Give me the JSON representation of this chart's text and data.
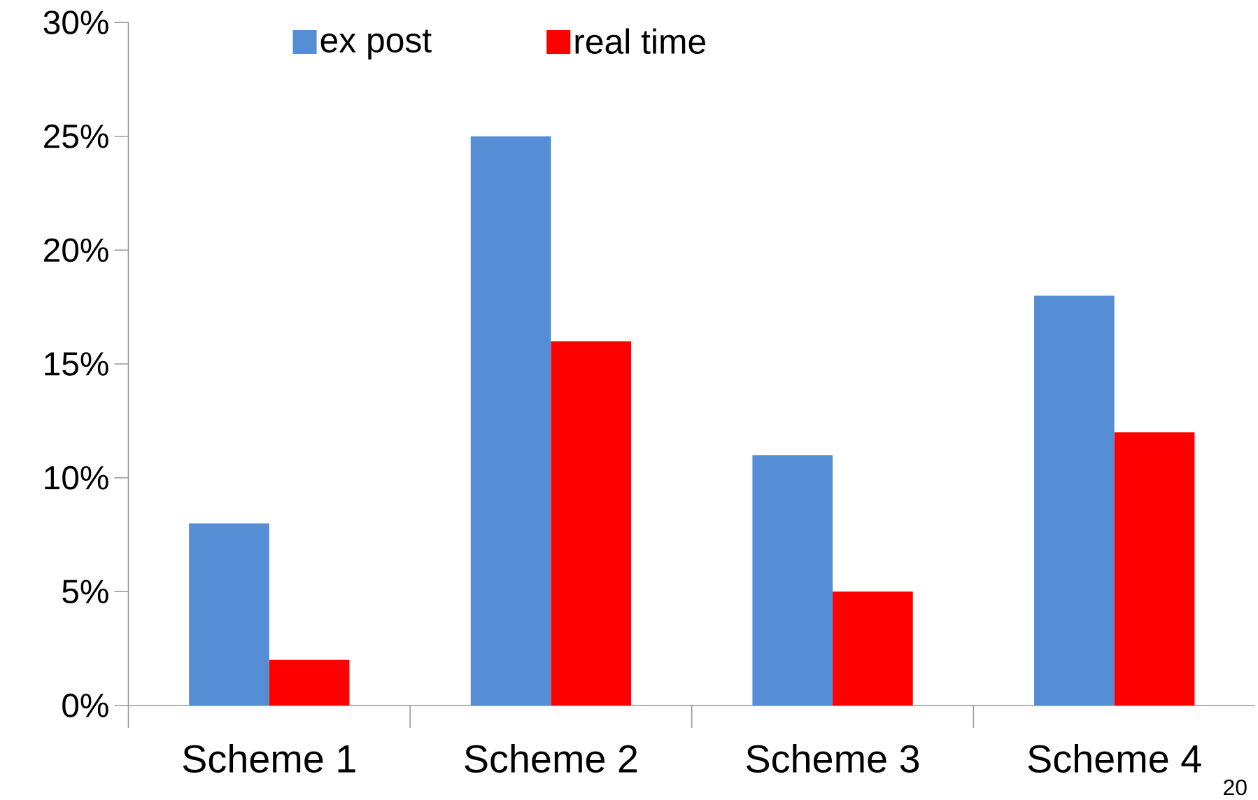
{
  "chart_data": {
    "type": "bar",
    "categories": [
      "Scheme 1",
      "Scheme 2",
      "Scheme 3",
      "Scheme 4"
    ],
    "series": [
      {
        "name": "ex post",
        "color": "#558ed5",
        "values": [
          8,
          25,
          11,
          18
        ]
      },
      {
        "name": "real time",
        "color": "#ff0000",
        "values": [
          2,
          16,
          5,
          12
        ]
      }
    ],
    "ylim": [
      0,
      30
    ],
    "yticks": [
      {
        "value": 0,
        "label": "0%"
      },
      {
        "value": 5,
        "label": "5%"
      },
      {
        "value": 10,
        "label": "10%"
      },
      {
        "value": 15,
        "label": "15%"
      },
      {
        "value": 20,
        "label": "20%"
      },
      {
        "value": 25,
        "label": "25%"
      },
      {
        "value": 30,
        "label": "30%"
      }
    ],
    "legend": "top",
    "grid": false,
    "annotations": [
      "20"
    ]
  }
}
